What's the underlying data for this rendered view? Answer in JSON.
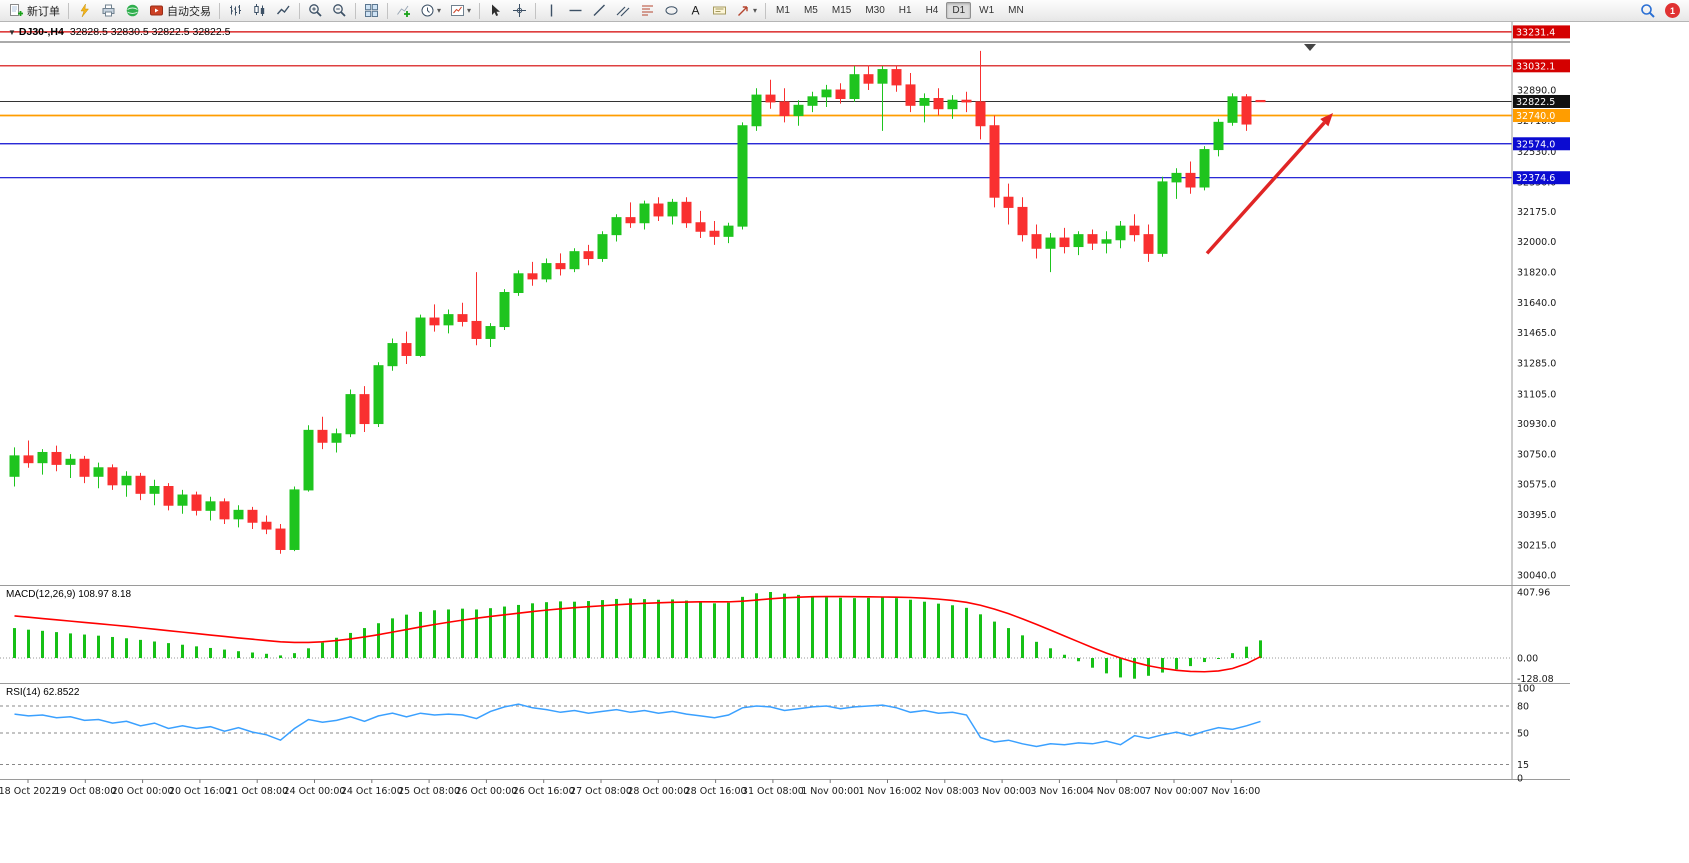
{
  "icons": {
    "caret": "▾",
    "collapse": "▼"
  },
  "toolbar": {
    "new_order_label": "新订单",
    "autotrading_label": "自动交易",
    "timeframes": [
      "M1",
      "M5",
      "M15",
      "M30",
      "H1",
      "H4",
      "D1",
      "W1",
      "MN"
    ],
    "active_timeframe": "D1",
    "notification_count": "1"
  },
  "chart": {
    "title": "DJ30-,H4",
    "ohlc": "32828.5 32830.5 32822.5 32822.5",
    "axis_ticks": [
      "32890.0",
      "32710.0",
      "32530.0",
      "32350.0",
      "32175.0",
      "32000.0",
      "31820.0",
      "31640.0",
      "31465.0",
      "31285.0",
      "31105.0",
      "30930.0",
      "30750.0",
      "30575.0",
      "30395.0",
      "30215.0",
      "30040.0"
    ],
    "levels": [
      {
        "value": "33231.4",
        "line": "#d40000",
        "badge": "#d40000",
        "width": 1.2
      },
      {
        "value": "33032.1",
        "line": "#d40000",
        "badge": "#d40000",
        "width": 1.2
      },
      {
        "value": "32822.5",
        "line": "#333333",
        "badge": "#111111",
        "width": 1
      },
      {
        "value": "32740.0",
        "line": "#ff9d00",
        "badge": "#ff9d00",
        "width": 1.8
      },
      {
        "value": "32574.0",
        "line": "#0b0bd1",
        "badge": "#0b0bd1",
        "width": 1.2
      },
      {
        "value": "32374.6",
        "line": "#0b0bd1",
        "badge": "#0b0bd1",
        "width": 1.2
      }
    ],
    "colors": {
      "up": "#1ec41e",
      "down": "#f93030"
    },
    "arrow": {
      "from_bar": 85.5,
      "from_price": 31930,
      "to_bar": 94.5,
      "to_price": 32755,
      "color": "#e02525"
    },
    "time_labels": [
      "18 Oct 2022",
      "19 Oct 08:00",
      "20 Oct 00:00",
      "20 Oct 16:00",
      "21 Oct 08:00",
      "24 Oct 00:00",
      "24 Oct 16:00",
      "25 Oct 08:00",
      "26 Oct 00:00",
      "26 Oct 16:00",
      "27 Oct 08:00",
      "28 Oct 00:00",
      "28 Oct 16:00",
      "31 Oct 08:00",
      "1 Nov 00:00",
      "1 Nov 16:00",
      "2 Nov 08:00",
      "3 Nov 00:00",
      "3 Nov 16:00",
      "4 Nov 08:00",
      "7 Nov 00:00",
      "7 Nov 16:00"
    ],
    "candles": [
      [
        30620,
        30790,
        30560,
        30740
      ],
      [
        30740,
        30830,
        30670,
        30700
      ],
      [
        30700,
        30780,
        30630,
        30760
      ],
      [
        30760,
        30800,
        30650,
        30690
      ],
      [
        30690,
        30750,
        30610,
        30720
      ],
      [
        30720,
        30740,
        30580,
        30620
      ],
      [
        30620,
        30700,
        30550,
        30670
      ],
      [
        30670,
        30690,
        30540,
        30570
      ],
      [
        30570,
        30650,
        30500,
        30620
      ],
      [
        30620,
        30640,
        30480,
        30520
      ],
      [
        30520,
        30600,
        30450,
        30560
      ],
      [
        30560,
        30580,
        30420,
        30450
      ],
      [
        30450,
        30540,
        30400,
        30510
      ],
      [
        30510,
        30530,
        30390,
        30420
      ],
      [
        30420,
        30500,
        30360,
        30470
      ],
      [
        30470,
        30490,
        30340,
        30370
      ],
      [
        30370,
        30450,
        30320,
        30420
      ],
      [
        30420,
        30440,
        30310,
        30350
      ],
      [
        30350,
        30390,
        30280,
        30310
      ],
      [
        30310,
        30340,
        30165,
        30190
      ],
      [
        30190,
        30560,
        30180,
        30540
      ],
      [
        30540,
        30920,
        30530,
        30890
      ],
      [
        30890,
        30970,
        30780,
        30820
      ],
      [
        30820,
        30900,
        30760,
        30870
      ],
      [
        30870,
        31130,
        30850,
        31100
      ],
      [
        31100,
        31150,
        30880,
        30930
      ],
      [
        30930,
        31290,
        30910,
        31270
      ],
      [
        31270,
        31430,
        31240,
        31400
      ],
      [
        31400,
        31470,
        31280,
        31330
      ],
      [
        31330,
        31570,
        31320,
        31550
      ],
      [
        31550,
        31630,
        31470,
        31510
      ],
      [
        31510,
        31600,
        31460,
        31570
      ],
      [
        31570,
        31640,
        31500,
        31530
      ],
      [
        31530,
        31820,
        31390,
        31430
      ],
      [
        31430,
        31520,
        31380,
        31500
      ],
      [
        31500,
        31720,
        31480,
        31700
      ],
      [
        31700,
        31830,
        31680,
        31810
      ],
      [
        31810,
        31880,
        31740,
        31780
      ],
      [
        31780,
        31900,
        31760,
        31870
      ],
      [
        31870,
        31930,
        31800,
        31840
      ],
      [
        31840,
        31960,
        31820,
        31940
      ],
      [
        31940,
        31980,
        31860,
        31900
      ],
      [
        31900,
        32060,
        31880,
        32040
      ],
      [
        32040,
        32160,
        32000,
        32140
      ],
      [
        32140,
        32230,
        32080,
        32110
      ],
      [
        32110,
        32240,
        32070,
        32220
      ],
      [
        32220,
        32260,
        32120,
        32150
      ],
      [
        32150,
        32250,
        32100,
        32230
      ],
      [
        32230,
        32260,
        32080,
        32110
      ],
      [
        32110,
        32180,
        32020,
        32060
      ],
      [
        32060,
        32120,
        31980,
        32030
      ],
      [
        32030,
        32110,
        31990,
        32090
      ],
      [
        32090,
        32700,
        32070,
        32680
      ],
      [
        32680,
        32900,
        32650,
        32860
      ],
      [
        32860,
        32950,
        32780,
        32820
      ],
      [
        32820,
        32900,
        32700,
        32740
      ],
      [
        32740,
        32830,
        32680,
        32800
      ],
      [
        32800,
        32880,
        32760,
        32850
      ],
      [
        32850,
        32920,
        32790,
        32890
      ],
      [
        32890,
        32930,
        32810,
        32840
      ],
      [
        32840,
        33030,
        32820,
        32980
      ],
      [
        32980,
        33035,
        32890,
        32930
      ],
      [
        32930,
        33030,
        32650,
        33010
      ],
      [
        33010,
        33032,
        32880,
        32920
      ],
      [
        32920,
        32990,
        32760,
        32800
      ],
      [
        32800,
        32870,
        32700,
        32840
      ],
      [
        32840,
        32900,
        32740,
        32780
      ],
      [
        32780,
        32860,
        32720,
        32830
      ],
      [
        32830,
        32880,
        32760,
        32820
      ],
      [
        32820,
        33120,
        32600,
        32680
      ],
      [
        32680,
        32740,
        32200,
        32260
      ],
      [
        32260,
        32340,
        32100,
        32200
      ],
      [
        32200,
        32260,
        32000,
        32040
      ],
      [
        32040,
        32100,
        31900,
        31960
      ],
      [
        31960,
        32050,
        31820,
        32020
      ],
      [
        32020,
        32080,
        31930,
        31970
      ],
      [
        31970,
        32060,
        31920,
        32040
      ],
      [
        32040,
        32070,
        31950,
        31990
      ],
      [
        31990,
        32060,
        31930,
        32010
      ],
      [
        32010,
        32120,
        31960,
        32090
      ],
      [
        32090,
        32160,
        32000,
        32040
      ],
      [
        32040,
        32100,
        31880,
        31930
      ],
      [
        31930,
        32380,
        31910,
        32350
      ],
      [
        32350,
        32430,
        32250,
        32400
      ],
      [
        32400,
        32470,
        32280,
        32320
      ],
      [
        32320,
        32560,
        32300,
        32540
      ],
      [
        32540,
        32720,
        32500,
        32700
      ],
      [
        32700,
        32870,
        32680,
        32850
      ],
      [
        32850,
        32866,
        32650,
        32690
      ],
      [
        32828.5,
        32830.5,
        32822.5,
        32822.5
      ]
    ]
  },
  "macd": {
    "label": "MACD(12,26,9) 108.97 8.18",
    "axis": [
      "407.96",
      "0.00",
      "-128.08"
    ],
    "colors": {
      "histogram": "#16c016",
      "signal": "#ff0000"
    },
    "histogram": [
      185,
      175,
      168,
      160,
      152,
      145,
      138,
      130,
      122,
      112,
      102,
      92,
      82,
      72,
      62,
      52,
      42,
      34,
      26,
      16,
      30,
      60,
      95,
      125,
      155,
      185,
      215,
      245,
      268,
      285,
      295,
      300,
      305,
      300,
      308,
      318,
      328,
      338,
      345,
      350,
      348,
      352,
      358,
      365,
      368,
      364,
      360,
      362,
      355,
      345,
      338,
      342,
      378,
      400,
      408,
      398,
      390,
      382,
      376,
      372,
      370,
      372,
      374,
      370,
      360,
      348,
      336,
      326,
      310,
      270,
      225,
      185,
      140,
      100,
      60,
      20,
      -20,
      -60,
      -95,
      -120,
      -128,
      -110,
      -90,
      -70,
      -50,
      -25,
      0,
      30,
      70,
      108.97
    ],
    "signal": [
      260,
      252,
      244,
      236,
      228,
      220,
      212,
      204,
      196,
      187,
      178,
      169,
      160,
      151,
      142,
      133,
      124,
      116,
      108,
      100,
      96,
      96,
      100,
      108,
      118,
      130,
      144,
      160,
      176,
      192,
      207,
      221,
      234,
      246,
      257,
      267,
      277,
      287,
      296,
      304,
      311,
      317,
      323,
      329,
      334,
      338,
      341,
      344,
      346,
      347,
      347,
      347,
      351,
      358,
      366,
      372,
      376,
      379,
      380,
      380,
      379,
      378,
      377,
      376,
      374,
      370,
      364,
      356,
      344,
      326,
      302,
      274,
      242,
      208,
      172,
      136,
      100,
      64,
      30,
      0,
      -26,
      -48,
      -64,
      -76,
      -83,
      -85,
      -80,
      -65,
      -35,
      8.18
    ]
  },
  "rsi": {
    "label": "RSI(14) 62.8522",
    "axis": [
      "100",
      "80",
      "50",
      "15",
      "0"
    ],
    "levels": [
      80,
      50,
      15
    ],
    "color": "#3aa0ff",
    "values": [
      71,
      69,
      70,
      67,
      68,
      64,
      65,
      61,
      63,
      58,
      61,
      55,
      58,
      55,
      57,
      52,
      56,
      51,
      48,
      42,
      55,
      65,
      62,
      64,
      68,
      63,
      69,
      72,
      68,
      72,
      70,
      71,
      70,
      66,
      74,
      79,
      82,
      78,
      76,
      73,
      75,
      72,
      74,
      76,
      73,
      75,
      72,
      74,
      71,
      69,
      67,
      70,
      78,
      80,
      79,
      75,
      77,
      79,
      80,
      77,
      79,
      80,
      81,
      78,
      73,
      75,
      72,
      73,
      70,
      45,
      40,
      42,
      38,
      35,
      38,
      37,
      39,
      38,
      41,
      37,
      47,
      44,
      48,
      51,
      47,
      52,
      56,
      54,
      58,
      62.85
    ]
  }
}
